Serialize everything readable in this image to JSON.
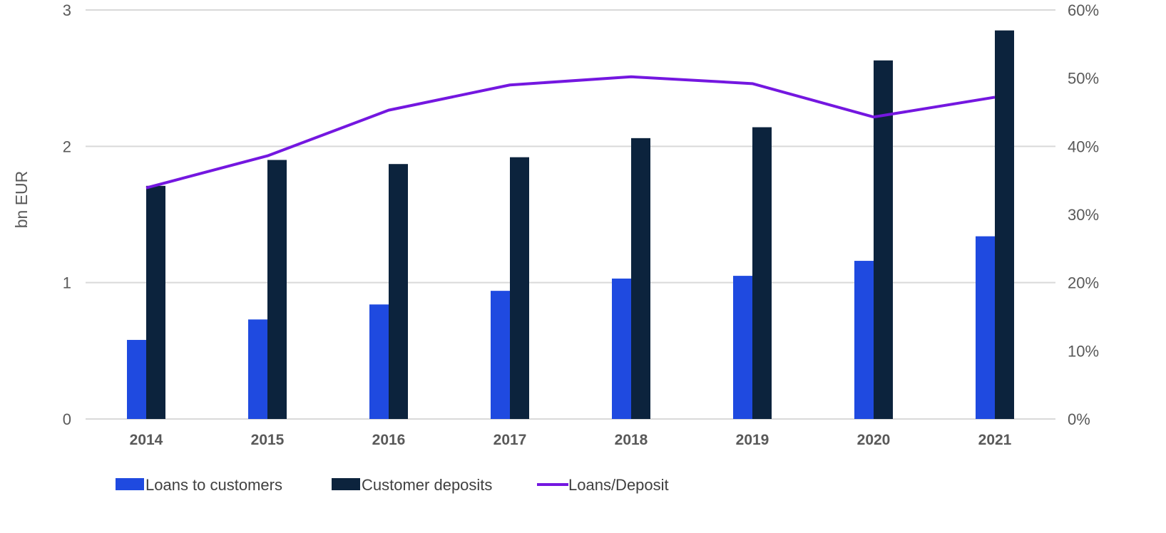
{
  "chart_data": {
    "type": "bar",
    "title": "",
    "xlabel": "",
    "ylabel": "bn EUR",
    "ylim": [
      0,
      3
    ],
    "y_ticks": [
      "0",
      "1",
      "2",
      "3"
    ],
    "y2lim": [
      0,
      60
    ],
    "y2_ticks": [
      "0%",
      "10%",
      "20%",
      "30%",
      "40%",
      "50%",
      "60%"
    ],
    "grid": true,
    "legend_position": "bottom-left",
    "categories": [
      "2014",
      "2015",
      "2016",
      "2017",
      "2018",
      "2019",
      "2020",
      "2021"
    ],
    "series": [
      {
        "name": "Loans to customers",
        "type": "bar",
        "axis": "left",
        "color": "#1f4ae0",
        "values": [
          0.58,
          0.73,
          0.84,
          0.94,
          1.03,
          1.05,
          1.16,
          1.34
        ]
      },
      {
        "name": "Customer deposits",
        "type": "bar",
        "axis": "left",
        "color": "#0c233d",
        "values": [
          1.71,
          1.9,
          1.87,
          1.92,
          2.06,
          2.14,
          2.63,
          2.85
        ]
      },
      {
        "name": "Loans/Deposit",
        "type": "line",
        "axis": "right",
        "color": "#7417e0",
        "values": [
          33.9,
          38.6,
          45.3,
          49.0,
          50.2,
          49.2,
          44.3,
          47.2
        ]
      }
    ]
  }
}
